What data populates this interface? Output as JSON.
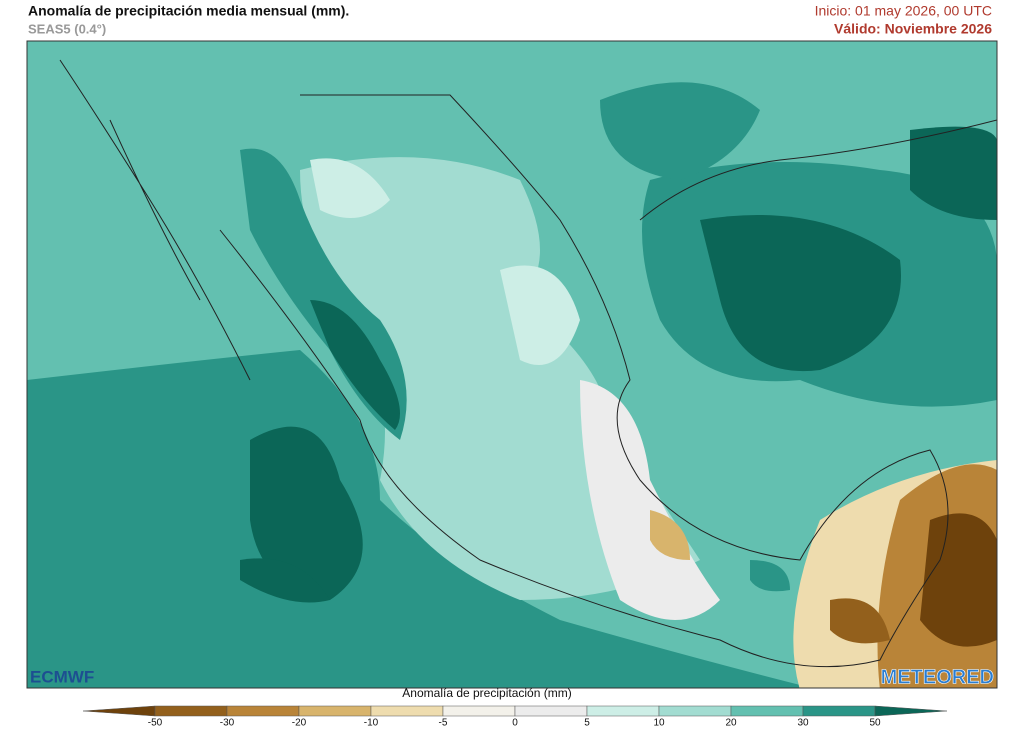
{
  "header": {
    "title": "Anomalía de precipitación media mensual (mm).",
    "subtitle": "SEAS5 (0.4°)",
    "init": "Inicio: 01 may 2026, 00 UTC",
    "valid": "Válido: Noviembre 2026"
  },
  "legend": {
    "label": "Anomalía de precipitación (mm)",
    "ticks": [
      -50,
      -30,
      -20,
      -10,
      -5,
      0,
      5,
      10,
      20,
      30,
      50
    ],
    "colors": [
      "#6e420c",
      "#93601c",
      "#b98438",
      "#d8b46c",
      "#eedcae",
      "#f3f1ea",
      "#ececec",
      "#cdeee6",
      "#a2dcd1",
      "#63c0b0",
      "#2a9587",
      "#0b6657"
    ]
  },
  "logos": {
    "left": "ECMWF",
    "right": "METEORED"
  }
}
